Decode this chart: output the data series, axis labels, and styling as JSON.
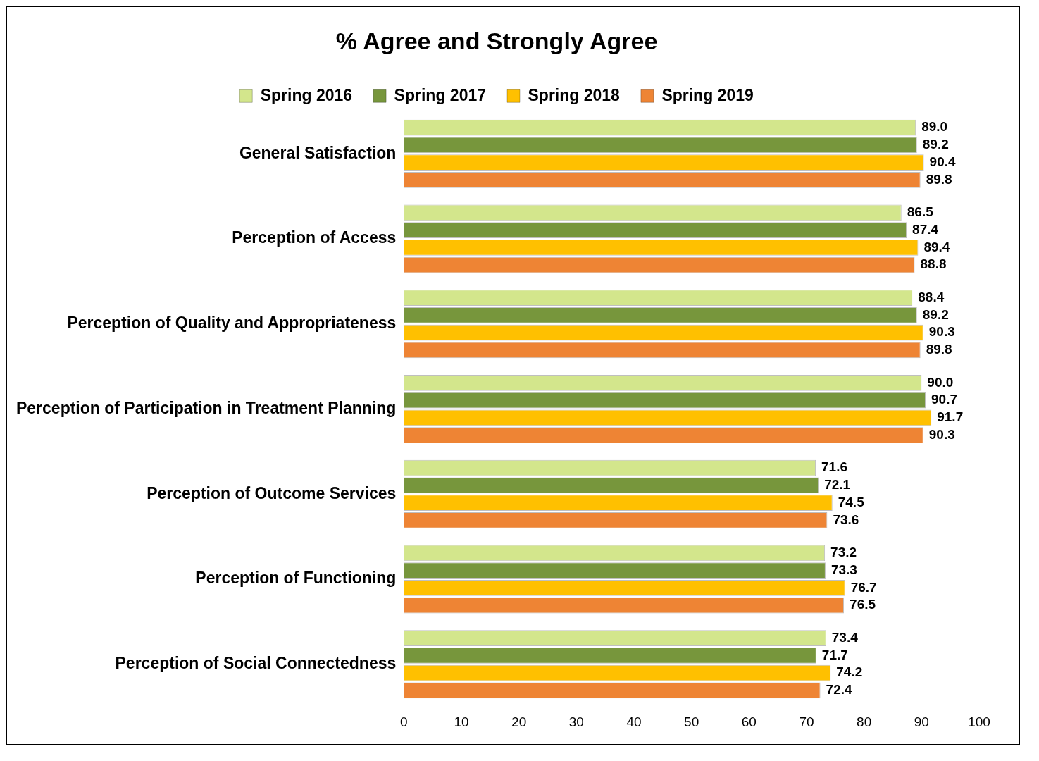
{
  "chart_data": {
    "type": "bar",
    "orientation": "horizontal",
    "title": "% Agree and Strongly Agree",
    "categories": [
      "General Satisfaction",
      "Perception of Access",
      "Perception of Quality and Appropriateness",
      "Perception of Participation in Treatment Planning",
      "Perception of Outcome Services",
      "Perception of Functioning",
      "Perception of Social Connectedness"
    ],
    "series": [
      {
        "name": "Spring 2016",
        "color": "#d3e68c",
        "values": [
          89.0,
          86.5,
          88.4,
          90.0,
          71.6,
          73.2,
          73.4
        ],
        "value_labels": [
          "89.0",
          "86.5",
          "88.4",
          "90.0",
          "71.6",
          "73.2",
          "73.4"
        ]
      },
      {
        "name": "Spring 2017",
        "color": "#77963c",
        "values": [
          89.2,
          87.4,
          89.2,
          90.7,
          72.1,
          73.3,
          71.7
        ],
        "value_labels": [
          "89.2",
          "87.4",
          "89.2",
          "90.7",
          "72.1",
          "73.3",
          "71.7"
        ]
      },
      {
        "name": "Spring 2018",
        "color": "#ffc000",
        "values": [
          90.4,
          89.4,
          90.3,
          91.7,
          74.5,
          76.7,
          74.2
        ],
        "value_labels": [
          "90.4",
          "89.4",
          "90.3",
          "91.7",
          "74.5",
          "76.7",
          "74.2"
        ]
      },
      {
        "name": "Spring 2019",
        "color": "#ee8434",
        "values": [
          89.8,
          88.8,
          89.8,
          90.3,
          73.6,
          76.5,
          72.4
        ],
        "value_labels": [
          "89.8",
          "88.8",
          "89.8",
          "90.3",
          "73.6",
          "76.5",
          "72.4"
        ]
      }
    ],
    "xlim": [
      0,
      100
    ],
    "xticks": [
      0,
      10,
      20,
      30,
      40,
      50,
      60,
      70,
      80,
      90,
      100
    ],
    "legend": "top",
    "grid": false
  }
}
